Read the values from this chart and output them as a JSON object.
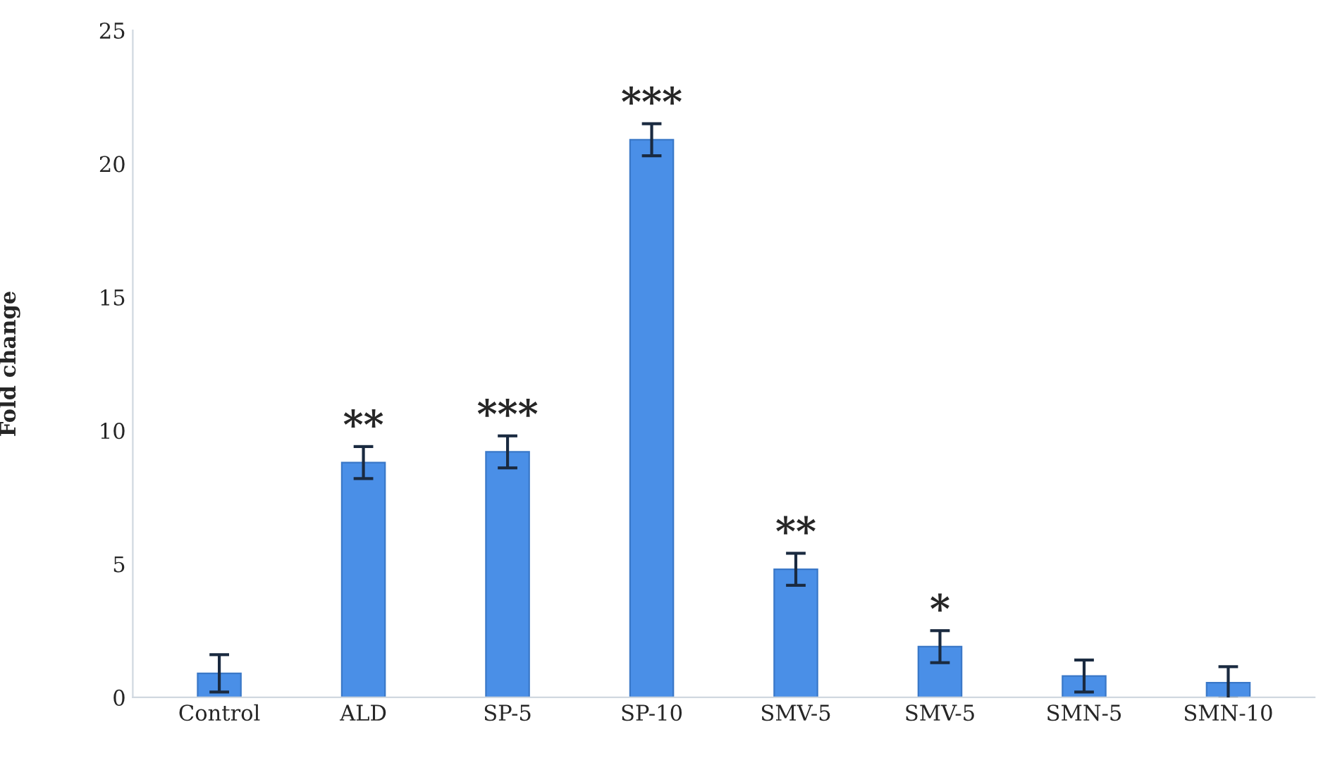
{
  "chart_data": {
    "type": "bar",
    "ylabel": "Fold change",
    "categories": [
      "Control",
      "ALD",
      "SP-5",
      "SP-10",
      "SMV-5",
      "SMV-5",
      "SMN-5",
      "SMN-10"
    ],
    "values": [
      0.9,
      8.8,
      9.2,
      20.9,
      4.8,
      1.9,
      0.8,
      0.55
    ],
    "errors": [
      0.7,
      0.6,
      0.6,
      0.6,
      0.6,
      0.6,
      0.6,
      0.6
    ],
    "value_labels": [
      null,
      "**",
      "***",
      "***",
      "**",
      "*",
      null,
      null
    ],
    "color": "#4a8fe7",
    "ylim": [
      0,
      25
    ],
    "yticks": [
      0,
      5,
      10,
      15,
      20,
      25
    ],
    "grid": false
  }
}
